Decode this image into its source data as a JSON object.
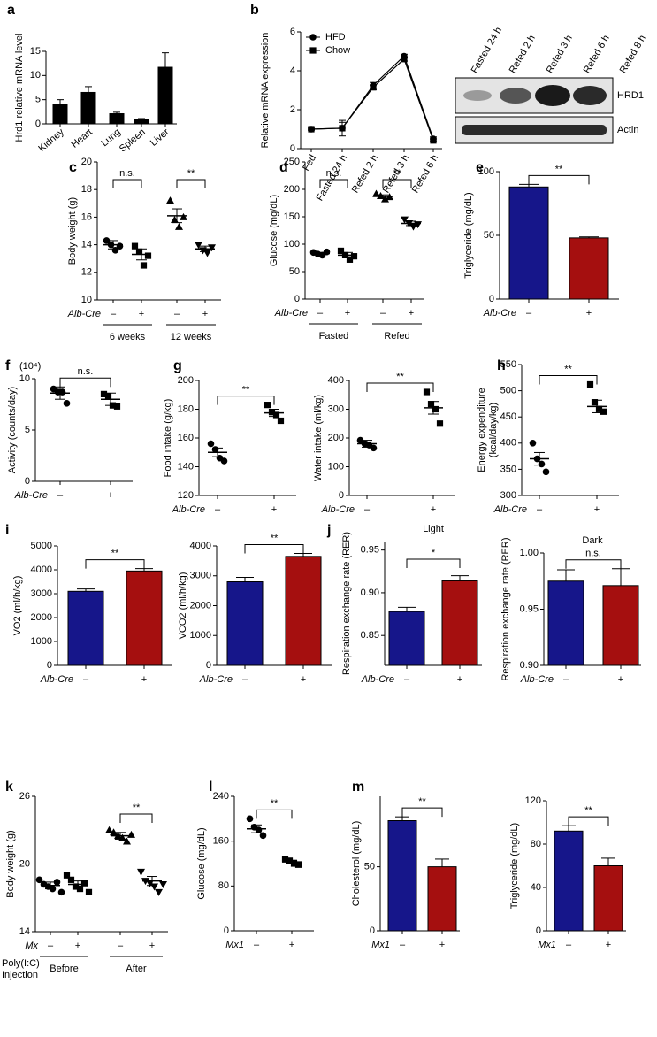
{
  "chart_data": [
    {
      "label": "a",
      "type": "bar",
      "ylabel": "Hrd1 relative mRNA level",
      "ylim": [
        0,
        15
      ],
      "yticks": [
        0,
        5,
        10,
        15
      ],
      "categories": [
        "Kidney",
        "Heart",
        "Lung",
        "Spleen",
        "Liver"
      ],
      "values": [
        4,
        6.5,
        2.1,
        1,
        11.7
      ],
      "errors": [
        1,
        1.2,
        0.3,
        0.1,
        3
      ],
      "color": "#000000"
    },
    {
      "label": "b",
      "type": "line",
      "ylabel": "Relative mRNA expression",
      "ylim": [
        0,
        6
      ],
      "yticks": [
        0,
        2,
        4,
        6
      ],
      "categories": [
        "Fed",
        "Fasted 24 h",
        "Refed 2 h",
        "Refed 3 h",
        "Refed 6 h"
      ],
      "series": [
        {
          "name": "HFD",
          "marker": "circle",
          "color": "#000000",
          "values": [
            1,
            1.05,
            3.25,
            4.75,
            0.5
          ],
          "errors": [
            0.05,
            0.4,
            0.15,
            0.1,
            0.1
          ]
        },
        {
          "name": "Chow",
          "marker": "square",
          "color": "#000000",
          "values": [
            1,
            1.05,
            3.15,
            4.6,
            0.42
          ],
          "errors": [
            0.05,
            0.3,
            0.12,
            0.1,
            0.08
          ]
        }
      ],
      "blot_lanes": [
        "Fasted 24 h",
        "Refed 2 h",
        "Refed 3 h",
        "Refed 6 h",
        "Refed 8 h"
      ],
      "blot_rows": [
        "HRD1",
        "Actin"
      ]
    },
    {
      "label": "c",
      "type": "dot",
      "ylabel": "Body weight (g)",
      "ylim": [
        10,
        20
      ],
      "yticks": [
        10,
        12,
        14,
        16,
        18,
        20
      ],
      "row_label": "Alb-Cre",
      "categories": [
        "–",
        "+",
        "–",
        "+"
      ],
      "groups": [
        "6 weeks",
        "12 weeks"
      ],
      "markers": [
        "circle",
        "square",
        "triangle",
        "triangle-down"
      ],
      "color": "#000000",
      "points": [
        [
          14.3,
          14.0,
          13.6,
          13.9
        ],
        [
          13.9,
          13.5,
          12.5,
          13.2
        ],
        [
          17.2,
          15.8,
          15.3,
          16.0
        ],
        [
          14.0,
          13.6,
          13.4,
          13.8
        ]
      ],
      "means": [
        14.0,
        13.3,
        16.1,
        13.7
      ],
      "errors": [
        0.3,
        0.4,
        0.5,
        0.2
      ],
      "annotations": [
        "n.s.",
        "**"
      ]
    },
    {
      "label": "d",
      "type": "dot",
      "ylabel": "Glucose (mg/dL)",
      "ylim": [
        0,
        250
      ],
      "yticks": [
        0,
        50,
        100,
        150,
        200,
        250
      ],
      "row_label": "Alb-Cre",
      "categories": [
        "–",
        "+",
        "–",
        "+"
      ],
      "groups": [
        "Fasted",
        "Refed"
      ],
      "markers": [
        "circle",
        "square",
        "triangle",
        "triangle-down"
      ],
      "color": "#000000",
      "points": [
        [
          85,
          82,
          80,
          86
        ],
        [
          88,
          80,
          72,
          78
        ],
        [
          192,
          188,
          182,
          186
        ],
        [
          145,
          138,
          132,
          136
        ]
      ],
      "means": [
        83,
        80,
        187,
        138
      ],
      "errors": [
        2,
        5,
        3,
        4
      ],
      "annotations": [
        "n.s.",
        "**"
      ]
    },
    {
      "label": "e",
      "type": "bar",
      "ylabel": "Triglyceride (mg/dL)",
      "ylim": [
        0,
        100
      ],
      "yticks": [
        0,
        50,
        100
      ],
      "row_label": "Alb-Cre",
      "categories": [
        "–",
        "+"
      ],
      "values": [
        88,
        48
      ],
      "errors": [
        2,
        0.8
      ],
      "colors": [
        "#16168a",
        "#a50f0f"
      ],
      "annotations": [
        "**"
      ]
    },
    {
      "label": "f",
      "type": "dot",
      "ylabel": "Activity (counts/day)",
      "unit": "(10⁴)",
      "ylim": [
        0,
        10
      ],
      "yticks": [
        0,
        5,
        10
      ],
      "row_label": "Alb-Cre",
      "categories": [
        "–",
        "+"
      ],
      "markers": [
        "circle",
        "square"
      ],
      "color": "#000000",
      "points": [
        [
          9.0,
          8.7,
          8.7,
          7.6
        ],
        [
          8.5,
          8.3,
          7.4,
          7.3
        ]
      ],
      "means": [
        8.6,
        8.0
      ],
      "errors": [
        0.6,
        0.6
      ],
      "annotations": [
        "n.s."
      ]
    },
    {
      "label": "g",
      "type": "dot",
      "ylabel": "Food intake (g/kg)",
      "ylim": [
        120,
        200
      ],
      "yticks": [
        120,
        140,
        160,
        180,
        200
      ],
      "row_label": "Alb-Cre",
      "categories": [
        "–",
        "+"
      ],
      "markers": [
        "circle",
        "square"
      ],
      "color": "#000000",
      "points": [
        [
          156,
          152,
          146,
          144
        ],
        [
          183,
          178,
          176,
          172
        ]
      ],
      "means": [
        150,
        177.5
      ],
      "errors": [
        3,
        2.5
      ],
      "annotations": [
        "**"
      ]
    },
    {
      "type": "dot",
      "ylabel": "Water intake (ml/kg)",
      "ylim": [
        0,
        400
      ],
      "yticks": [
        0,
        100,
        200,
        300,
        400
      ],
      "row_label": "Alb-Cre",
      "categories": [
        "–",
        "+"
      ],
      "markers": [
        "circle",
        "square"
      ],
      "color": "#000000",
      "points": [
        [
          192,
          180,
          175,
          165
        ],
        [
          360,
          318,
          300,
          250
        ]
      ],
      "means": [
        180,
        305
      ],
      "errors": [
        12,
        22
      ],
      "annotations": [
        "**"
      ]
    },
    {
      "label": "h",
      "type": "dot",
      "ylabel": [
        "Energy expenditure",
        "(kcal/day/kg)"
      ],
      "ylim": [
        300,
        550
      ],
      "yticks": [
        300,
        350,
        400,
        450,
        500,
        550
      ],
      "row_label": "Alb-Cre",
      "categories": [
        "–",
        "+"
      ],
      "markers": [
        "circle",
        "square"
      ],
      "color": "#000000",
      "points": [
        [
          400,
          370,
          360,
          345
        ],
        [
          512,
          478,
          465,
          460
        ]
      ],
      "means": [
        370,
        470
      ],
      "errors": [
        12,
        12
      ],
      "annotations": [
        "**"
      ]
    },
    {
      "label": "i",
      "type": "bar",
      "ylabel": "VO2 (ml/h/kg)",
      "ylim": [
        0,
        5000
      ],
      "yticks": [
        0,
        1000,
        2000,
        3000,
        4000,
        5000
      ],
      "row_label": "Alb-Cre",
      "categories": [
        "–",
        "+"
      ],
      "values": [
        3100,
        3950
      ],
      "errors": [
        100,
        100
      ],
      "colors": [
        "#16168a",
        "#a50f0f"
      ],
      "annotations": [
        "**"
      ]
    },
    {
      "type": "bar",
      "ylabel": "VCO2 (ml/h/kg)",
      "ylim": [
        0,
        4000
      ],
      "yticks": [
        0,
        1000,
        2000,
        3000,
        4000
      ],
      "row_label": "Alb-Cre",
      "categories": [
        "–",
        "+"
      ],
      "values": [
        2800,
        3650
      ],
      "errors": [
        150,
        100
      ],
      "colors": [
        "#16168a",
        "#a50f0f"
      ],
      "annotations": [
        "**"
      ]
    },
    {
      "label": "j",
      "title": "Light",
      "type": "bar",
      "ylabel": "Respiration exchange rate (RER)",
      "ylim": [
        0.815,
        0.96
      ],
      "yticks": [
        0.85,
        {
          "value": 0.9,
          "label": "0.90"
        },
        0.95
      ],
      "row_label": "Alb-Cre",
      "categories": [
        "–",
        "+"
      ],
      "values": [
        0.878,
        0.914
      ],
      "errors": [
        0.005,
        0.006
      ],
      "colors": [
        "#16168a",
        "#a50f0f"
      ],
      "annotations": [
        "*"
      ]
    },
    {
      "title": "Dark",
      "type": "bar",
      "ylabel": "Respiration exchange rate (RER)",
      "ylim": [
        0.9,
        1.0
      ],
      "yticks": [
        {
          "value": 0.9,
          "label": "0.90"
        },
        0.95,
        {
          "value": 1.0,
          "label": "1.00"
        }
      ],
      "row_label": "Alb-Cre",
      "categories": [
        "–",
        "+"
      ],
      "values": [
        0.975,
        0.971
      ],
      "errors": [
        0.01,
        0.015
      ],
      "colors": [
        "#16168a",
        "#a50f0f"
      ],
      "annotations": [
        "n.s."
      ]
    },
    {
      "label": "k",
      "type": "dot",
      "ylabel": "Body weight (g)",
      "ylim": [
        14,
        26
      ],
      "yticks": [
        14,
        20,
        26
      ],
      "row_label": "Mx",
      "group_header": [
        "Poly(I:C)",
        "Injection"
      ],
      "categories": [
        "–",
        "+",
        "–",
        "+"
      ],
      "groups": [
        "Before",
        "After"
      ],
      "markers": [
        "circle",
        "square",
        "triangle",
        "triangle-down"
      ],
      "color": "#000000",
      "points": [
        [
          18.6,
          18.2,
          18.0,
          17.8,
          18.4,
          17.5
        ],
        [
          19.0,
          18.6,
          18.0,
          17.8,
          18.3,
          17.5
        ],
        [
          23.0,
          22.8,
          22.5,
          22.3,
          22.0,
          22.6
        ],
        [
          19.3,
          18.5,
          18.3,
          18.0,
          17.5,
          18.2
        ]
      ],
      "means": [
        18.1,
        18.2,
        22.5,
        18.5
      ],
      "errors": [
        0.3,
        0.3,
        0.3,
        0.4
      ],
      "annotations": [
        null,
        "**"
      ]
    },
    {
      "label": "l",
      "type": "dot",
      "ylabel": "Glucose (mg/dL)",
      "ylim": [
        0,
        240
      ],
      "yticks": [
        0,
        80,
        160,
        240
      ],
      "row_label": "Mx1",
      "categories": [
        "–",
        "+"
      ],
      "markers": [
        "circle",
        "square"
      ],
      "color": "#000000",
      "points": [
        [
          200,
          185,
          180,
          170
        ],
        [
          128,
          125,
          120,
          118
        ]
      ],
      "means": [
        182,
        123
      ],
      "errors": [
        7,
        3
      ],
      "annotations": [
        "**"
      ]
    },
    {
      "label": "m",
      "type": "bar",
      "ylabel": "Cholesterol (mg/dL)",
      "ylim": [
        0,
        105
      ],
      "yticks": [
        0,
        50
      ],
      "row_label": "Mx1",
      "categories": [
        "–",
        "+"
      ],
      "values": [
        86,
        50
      ],
      "errors": [
        3,
        6
      ],
      "colors": [
        "#16168a",
        "#a50f0f"
      ],
      "annotations": [
        "**"
      ]
    },
    {
      "type": "bar",
      "ylabel": "Triglyceride (mg/dL)",
      "ylim": [
        0,
        120
      ],
      "yticks": [
        0,
        40,
        80,
        120
      ],
      "row_label": "Mx1",
      "categories": [
        "–",
        "+"
      ],
      "values": [
        92,
        60
      ],
      "errors": [
        5,
        7
      ],
      "colors": [
        "#16168a",
        "#a50f0f"
      ],
      "annotations": [
        "**"
      ]
    }
  ]
}
